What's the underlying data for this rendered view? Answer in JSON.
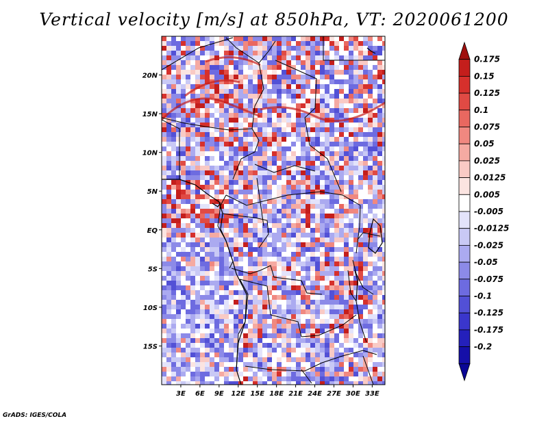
{
  "title": "Vertical velocity [m/s] at 850hPa, VT: 2020061200",
  "credit": "GrADS: IGES/COLA",
  "map": {
    "variable": "Vertical velocity",
    "units": "m/s",
    "level": "850hPa",
    "valid_time": "2020061200",
    "lon_range": [
      0,
      35
    ],
    "lat_range": [
      -20,
      25
    ],
    "x_ticks": [
      {
        "value": 3,
        "label": "3E"
      },
      {
        "value": 6,
        "label": "6E"
      },
      {
        "value": 9,
        "label": "9E"
      },
      {
        "value": 12,
        "label": "12E"
      },
      {
        "value": 15,
        "label": "15E"
      },
      {
        "value": 18,
        "label": "18E"
      },
      {
        "value": 21,
        "label": "21E"
      },
      {
        "value": 24,
        "label": "24E"
      },
      {
        "value": 27,
        "label": "27E"
      },
      {
        "value": 30,
        "label": "30E"
      },
      {
        "value": 33,
        "label": "33E"
      }
    ],
    "y_ticks": [
      {
        "value": 20,
        "label": "20N"
      },
      {
        "value": 15,
        "label": "15N"
      },
      {
        "value": 10,
        "label": "10N"
      },
      {
        "value": 5,
        "label": "5N"
      },
      {
        "value": 0,
        "label": "EQ"
      },
      {
        "value": -5,
        "label": "5S"
      },
      {
        "value": -10,
        "label": "10S"
      },
      {
        "value": -15,
        "label": "15S"
      }
    ]
  },
  "colorbar": {
    "labels": [
      "0.175",
      "0.15",
      "0.125",
      "0.1",
      "0.075",
      "0.05",
      "0.025",
      "0.0125",
      "0.005",
      "-0.005",
      "-0.0125",
      "-0.025",
      "-0.05",
      "-0.075",
      "-0.1",
      "-0.125",
      "-0.175",
      "-0.2"
    ],
    "colors": [
      "#a0100e",
      "#c41e1c",
      "#d6302c",
      "#e04a44",
      "#e96860",
      "#f08880",
      "#f5aaa2",
      "#f9cac5",
      "#fbe4e1",
      "#ffffff",
      "#e3e3fb",
      "#c9c9f5",
      "#abaaf0",
      "#8c8ae8",
      "#6d6be0",
      "#5250d6",
      "#3a36cc",
      "#2420bb",
      "#150fa8",
      "#0a0696"
    ]
  }
}
